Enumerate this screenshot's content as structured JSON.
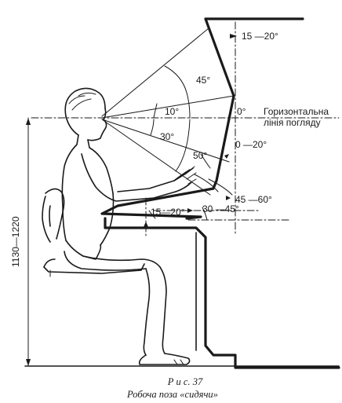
{
  "angles": {
    "display_tilt": "15 —20°",
    "upper_view": "45°",
    "view_10": "10°",
    "view_30": "30°",
    "view_50": "50°",
    "horizon_zero": "0°",
    "keyboard_tilt": "0 —20°",
    "lower_view": "45 —60°",
    "desk_angle": "15—20°",
    "forearm_angle": "30 —45°"
  },
  "horizon_label": {
    "line1": "Горизонтальна",
    "line2": "лінія погляду"
  },
  "dimension": {
    "eye_height": "1130—1220"
  },
  "caption": {
    "figure": "Р и с.   37",
    "title": "Робоча поза «сидячи»"
  },
  "colors": {
    "ink": "#1a1a1a",
    "paper": "#ffffff"
  }
}
